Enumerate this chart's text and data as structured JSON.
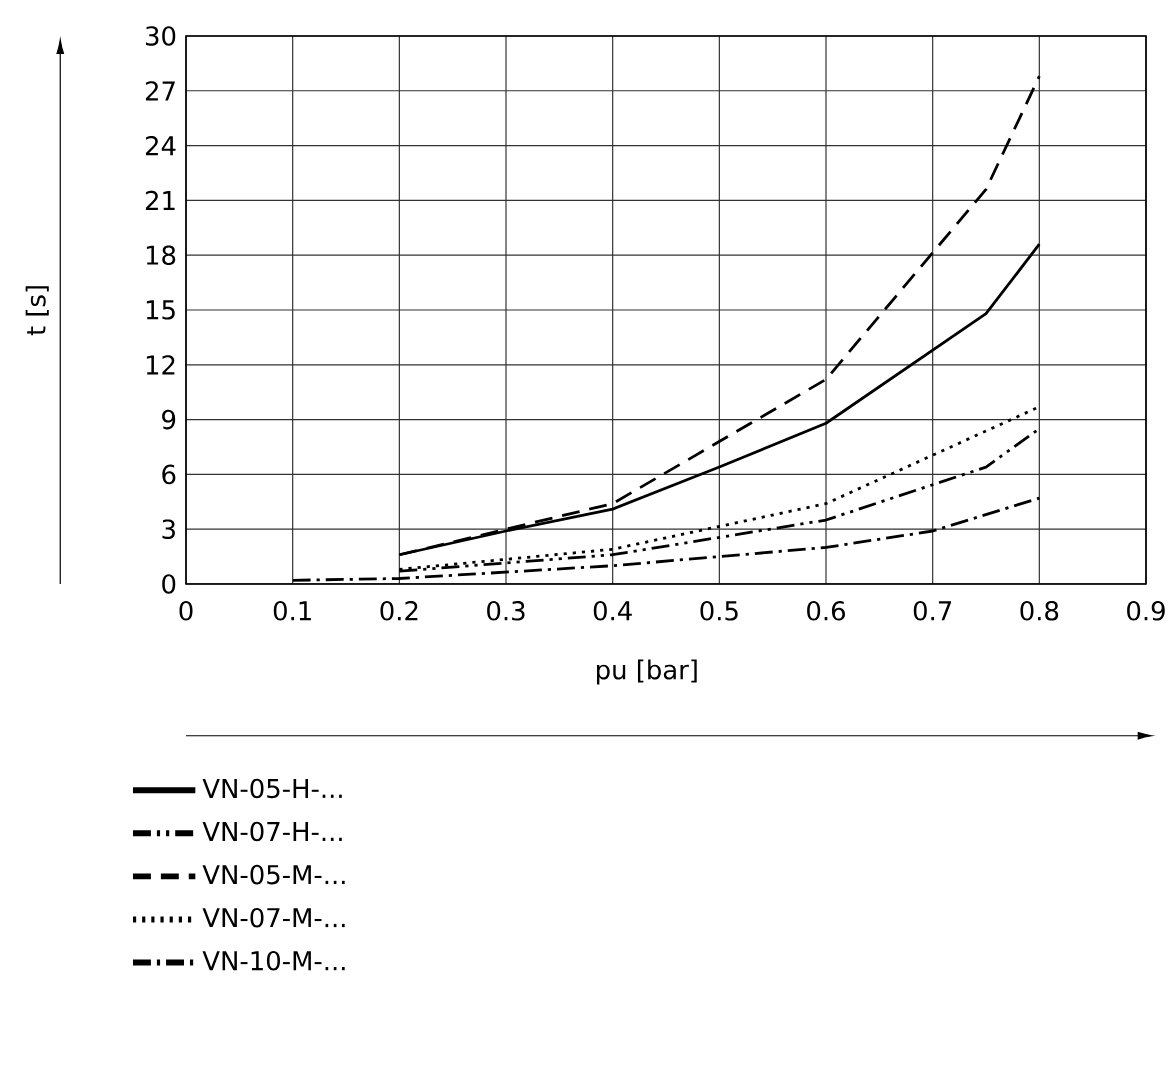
{
  "chart_data": {
    "type": "line",
    "xlabel": "pu [bar]",
    "ylabel": "t [s]",
    "xlim": [
      0,
      0.9
    ],
    "ylim": [
      0,
      30
    ],
    "xticks": [
      0,
      0.1,
      0.2,
      0.3,
      0.4,
      0.5,
      0.6,
      0.7,
      0.8,
      0.9
    ],
    "yticks": [
      0,
      3,
      6,
      9,
      12,
      15,
      18,
      21,
      24,
      27,
      30
    ],
    "grid": true,
    "legend": "bottom left",
    "marker": "none",
    "series": [
      {
        "name": "VN-05-H-...",
        "color": "#000000",
        "line_style": "solid",
        "x": [
          0.2,
          0.3,
          0.4,
          0.5,
          0.6,
          0.75,
          0.8
        ],
        "values": [
          1.6,
          2.9,
          4.1,
          6.4,
          8.8,
          14.8,
          18.6
        ]
      },
      {
        "name": "VN-07-H-...",
        "color": "#000000",
        "line_style": "dashdotdotted",
        "x": [
          0.2,
          0.4,
          0.6,
          0.75,
          0.8
        ],
        "values": [
          0.7,
          1.6,
          3.5,
          6.4,
          8.5
        ]
      },
      {
        "name": "VN-05-M-...",
        "color": "#000000",
        "line_style": "dashed",
        "x": [
          0.2,
          0.4,
          0.6,
          0.75,
          0.8
        ],
        "values": [
          1.6,
          4.4,
          11.2,
          21.6,
          27.8
        ]
      },
      {
        "name": "VN-07-M-...",
        "color": "#000000",
        "line_style": "dotted",
        "x": [
          0.2,
          0.4,
          0.6,
          0.8
        ],
        "values": [
          0.8,
          1.9,
          4.4,
          9.7
        ]
      },
      {
        "name": "VN-10-M-...",
        "color": "#000000",
        "line_style": "dashdotted",
        "x": [
          0.1,
          0.2,
          0.4,
          0.6,
          0.7,
          0.8
        ],
        "values": [
          0.2,
          0.3,
          1.0,
          2.0,
          2.9,
          4.7
        ]
      }
    ]
  }
}
